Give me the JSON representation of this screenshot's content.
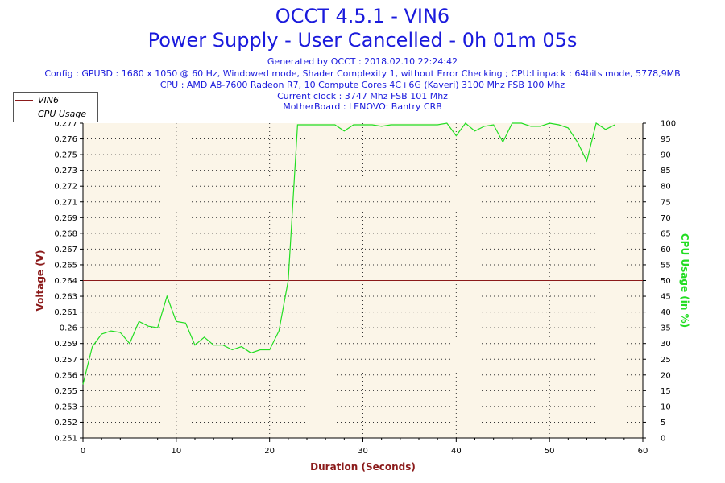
{
  "header": {
    "title": "OCCT 4.5.1 - VIN6",
    "subtitle": "Power Supply - User Cancelled - 0h 01m 05s",
    "generated": "Generated by OCCT : 2018.02.10 22:24:42",
    "config": "Config : GPU3D : 1680 x 1050 @ 60 Hz, Windowed mode, Shader Complexity 1, without Error Checking ; CPU:Linpack : 64bits mode, 5778,9MB",
    "cpu": "CPU : AMD A8-7600 Radeon R7, 10 Compute Cores 4C+6G (Kaveri) 3100 Mhz FSB 100 Mhz",
    "clock": "Current clock : 3747 Mhz FSB 101 Mhz",
    "motherboard": "MotherBoard : LENOVO: Bantry CRB"
  },
  "colors": {
    "voltage": "#8b1a1a",
    "cpu_usage": "#22dd22",
    "plot_bg": "#fbf5e8",
    "title": "#1a1adc"
  },
  "chart_data": {
    "type": "line",
    "xlabel": "Duration (Seconds)",
    "ylabel_left": "Voltage (V)",
    "ylabel_right": "CPU Usage (in %)",
    "xlim": [
      0,
      60
    ],
    "ylim_left": [
      0.251,
      0.277
    ],
    "ylim_right": [
      0,
      100
    ],
    "grid": true,
    "legend_position": "top-left",
    "x_ticks": [
      "0",
      "10",
      "20",
      "30",
      "40",
      "50",
      "60"
    ],
    "left_ticks": [
      "0.251",
      "0.252",
      "0.253",
      "0.255",
      "0.256",
      "0.257",
      "0.259",
      "0.26",
      "0.261",
      "0.263",
      "0.264",
      "0.265",
      "0.267",
      "0.268",
      "0.269",
      "0.271",
      "0.272",
      "0.273",
      "0.275",
      "0.276",
      "0.277"
    ],
    "right_ticks": [
      "0",
      "5",
      "10",
      "15",
      "20",
      "25",
      "30",
      "35",
      "40",
      "45",
      "50",
      "55",
      "60",
      "65",
      "70",
      "75",
      "80",
      "85",
      "90",
      "95",
      "100"
    ],
    "series": [
      {
        "name": "VIN6",
        "axis": "left",
        "x": [
          0,
          60
        ],
        "y": [
          0.264,
          0.264
        ]
      },
      {
        "name": "CPU Usage",
        "axis": "right",
        "x": [
          0,
          1,
          2,
          3,
          4,
          5,
          6,
          7,
          8,
          9,
          10,
          11,
          12,
          13,
          14,
          15,
          16,
          17,
          18,
          19,
          20,
          21,
          22,
          23,
          24,
          25,
          26,
          27,
          28,
          29,
          30,
          31,
          32,
          33,
          34,
          35,
          36,
          37,
          38,
          39,
          40,
          41,
          42,
          43,
          44,
          45,
          46,
          47,
          48,
          49,
          50,
          51,
          52,
          53,
          54,
          55,
          56,
          57
        ],
        "y": [
          17,
          29,
          33,
          34,
          33.5,
          30,
          37,
          35.5,
          35,
          45,
          37,
          36.5,
          29.5,
          32,
          29.5,
          29.5,
          28,
          29,
          27,
          28,
          28,
          34,
          50,
          99.5,
          99.5,
          99.5,
          99.5,
          99.5,
          97.5,
          99.5,
          99.5,
          99.5,
          99,
          99.5,
          99.5,
          99.5,
          99.5,
          99.5,
          99.5,
          100,
          96,
          100,
          97.5,
          99,
          99.5,
          94,
          100,
          100,
          99,
          99,
          100,
          99.5,
          98.5,
          94,
          88,
          100,
          98,
          99.5
        ]
      }
    ]
  }
}
